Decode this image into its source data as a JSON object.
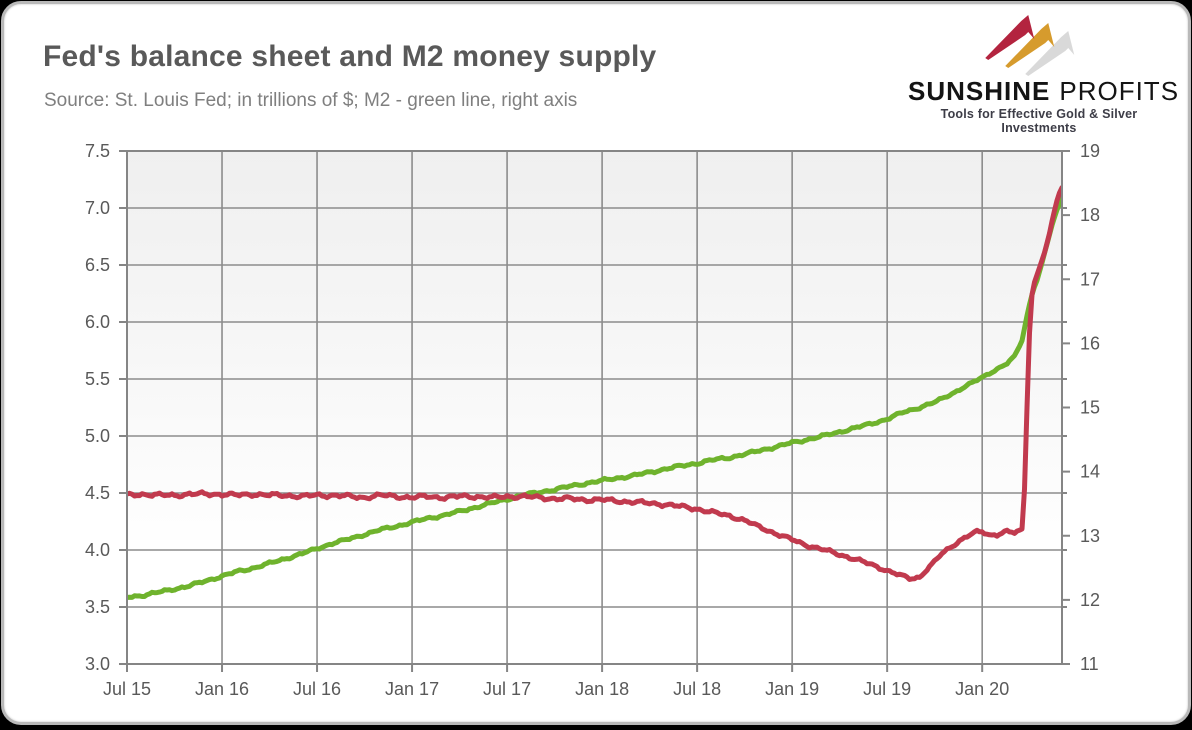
{
  "header": {
    "title": "Fed's balance sheet and M2 money supply",
    "subtitle": "Source: St. Louis Fed; in trillions of $; M2 - green line, right axis"
  },
  "logo": {
    "brand_bold": "SUNSHINE",
    "brand_light": "PROFITS",
    "tagline": "Tools for Effective Gold & Silver Investments",
    "bolt_colors": {
      "red": "#b3243f",
      "gold": "#d69b2d",
      "silver": "#d9d9d9"
    }
  },
  "chart_data": {
    "type": "line",
    "title": "Fed's balance sheet and M2 money supply",
    "x_domain": [
      2015.5,
      2020.42
    ],
    "x_ticks": [
      {
        "v": 2015.5,
        "label": "Jul 15"
      },
      {
        "v": 2016.0,
        "label": "Jan 16"
      },
      {
        "v": 2016.5,
        "label": "Jul 16"
      },
      {
        "v": 2017.0,
        "label": "Jan 17"
      },
      {
        "v": 2017.5,
        "label": "Jul 17"
      },
      {
        "v": 2018.0,
        "label": "Jan 18"
      },
      {
        "v": 2018.5,
        "label": "Jul 18"
      },
      {
        "v": 2019.0,
        "label": "Jan 19"
      },
      {
        "v": 2019.5,
        "label": "Jul 19"
      },
      {
        "v": 2020.0,
        "label": "Jan 20"
      }
    ],
    "y_left": {
      "min": 3.0,
      "max": 7.5,
      "step": 0.5,
      "labels": [
        "3.0",
        "3.5",
        "4.0",
        "4.5",
        "5.0",
        "5.5",
        "6.0",
        "6.5",
        "7.0",
        "7.5"
      ]
    },
    "y_right": {
      "min": 11,
      "max": 19,
      "step": 1,
      "labels": [
        "11",
        "12",
        "13",
        "14",
        "15",
        "16",
        "17",
        "18",
        "19"
      ]
    },
    "grid": {
      "on": true,
      "color": "#8c8c8c"
    },
    "plot_background": {
      "top": "#efefef",
      "bottom": "#ffffff"
    },
    "axis_text_color": "#595959",
    "series": [
      {
        "name": "M2 money supply",
        "axis": "right",
        "color": "#6fb32d",
        "points": [
          [
            2015.5,
            12.04
          ],
          [
            2015.58,
            12.07
          ],
          [
            2015.67,
            12.12
          ],
          [
            2015.75,
            12.17
          ],
          [
            2015.83,
            12.22
          ],
          [
            2015.92,
            12.3
          ],
          [
            2016.0,
            12.37
          ],
          [
            2016.08,
            12.44
          ],
          [
            2016.17,
            12.5
          ],
          [
            2016.25,
            12.57
          ],
          [
            2016.33,
            12.64
          ],
          [
            2016.42,
            12.72
          ],
          [
            2016.5,
            12.8
          ],
          [
            2016.58,
            12.88
          ],
          [
            2016.67,
            12.95
          ],
          [
            2016.75,
            13.02
          ],
          [
            2016.83,
            13.09
          ],
          [
            2016.92,
            13.15
          ],
          [
            2017.0,
            13.21
          ],
          [
            2017.08,
            13.27
          ],
          [
            2017.17,
            13.32
          ],
          [
            2017.25,
            13.38
          ],
          [
            2017.33,
            13.44
          ],
          [
            2017.42,
            13.51
          ],
          [
            2017.5,
            13.57
          ],
          [
            2017.58,
            13.63
          ],
          [
            2017.67,
            13.68
          ],
          [
            2017.75,
            13.72
          ],
          [
            2017.83,
            13.77
          ],
          [
            2017.92,
            13.82
          ],
          [
            2018.0,
            13.86
          ],
          [
            2018.08,
            13.9
          ],
          [
            2018.17,
            13.94
          ],
          [
            2018.25,
            13.99
          ],
          [
            2018.33,
            14.04
          ],
          [
            2018.42,
            14.09
          ],
          [
            2018.5,
            14.13
          ],
          [
            2018.58,
            14.18
          ],
          [
            2018.67,
            14.22
          ],
          [
            2018.75,
            14.27
          ],
          [
            2018.83,
            14.33
          ],
          [
            2018.92,
            14.39
          ],
          [
            2019.0,
            14.45
          ],
          [
            2019.08,
            14.5
          ],
          [
            2019.17,
            14.56
          ],
          [
            2019.25,
            14.62
          ],
          [
            2019.33,
            14.68
          ],
          [
            2019.42,
            14.75
          ],
          [
            2019.5,
            14.82
          ],
          [
            2019.58,
            14.92
          ],
          [
            2019.67,
            15.0
          ],
          [
            2019.75,
            15.08
          ],
          [
            2019.83,
            15.2
          ],
          [
            2019.92,
            15.34
          ],
          [
            2020.0,
            15.47
          ],
          [
            2020.04,
            15.54
          ],
          [
            2020.08,
            15.6
          ],
          [
            2020.13,
            15.68
          ],
          [
            2020.17,
            15.8
          ],
          [
            2020.19,
            15.92
          ],
          [
            2020.21,
            16.05
          ],
          [
            2020.23,
            16.35
          ],
          [
            2020.25,
            16.62
          ],
          [
            2020.27,
            16.85
          ],
          [
            2020.29,
            17.0
          ],
          [
            2020.31,
            17.2
          ],
          [
            2020.33,
            17.42
          ],
          [
            2020.35,
            17.65
          ],
          [
            2020.37,
            17.87
          ],
          [
            2020.39,
            18.05
          ],
          [
            2020.41,
            18.2
          ],
          [
            2020.42,
            18.28
          ]
        ]
      },
      {
        "name": "Fed's balance sheet",
        "axis": "left",
        "color": "#c13a4e",
        "points": [
          [
            2015.5,
            4.48
          ],
          [
            2015.58,
            4.49
          ],
          [
            2015.67,
            4.48
          ],
          [
            2015.75,
            4.48
          ],
          [
            2015.83,
            4.49
          ],
          [
            2015.92,
            4.49
          ],
          [
            2016.0,
            4.49
          ],
          [
            2016.08,
            4.48
          ],
          [
            2016.17,
            4.49
          ],
          [
            2016.25,
            4.48
          ],
          [
            2016.33,
            4.48
          ],
          [
            2016.42,
            4.47
          ],
          [
            2016.5,
            4.48
          ],
          [
            2016.58,
            4.48
          ],
          [
            2016.67,
            4.47
          ],
          [
            2016.75,
            4.46
          ],
          [
            2016.83,
            4.48
          ],
          [
            2016.92,
            4.47
          ],
          [
            2017.0,
            4.46
          ],
          [
            2017.08,
            4.47
          ],
          [
            2017.17,
            4.46
          ],
          [
            2017.25,
            4.47
          ],
          [
            2017.33,
            4.47
          ],
          [
            2017.42,
            4.46
          ],
          [
            2017.5,
            4.47
          ],
          [
            2017.58,
            4.47
          ],
          [
            2017.67,
            4.46
          ],
          [
            2017.75,
            4.45
          ],
          [
            2017.83,
            4.45
          ],
          [
            2017.92,
            4.44
          ],
          [
            2018.0,
            4.44
          ],
          [
            2018.08,
            4.43
          ],
          [
            2018.17,
            4.42
          ],
          [
            2018.25,
            4.41
          ],
          [
            2018.33,
            4.4
          ],
          [
            2018.42,
            4.38
          ],
          [
            2018.5,
            4.36
          ],
          [
            2018.58,
            4.33
          ],
          [
            2018.67,
            4.3
          ],
          [
            2018.75,
            4.26
          ],
          [
            2018.83,
            4.2
          ],
          [
            2018.92,
            4.14
          ],
          [
            2019.0,
            4.09
          ],
          [
            2019.08,
            4.04
          ],
          [
            2019.17,
            4.0
          ],
          [
            2019.25,
            3.96
          ],
          [
            2019.33,
            3.92
          ],
          [
            2019.42,
            3.87
          ],
          [
            2019.5,
            3.82
          ],
          [
            2019.58,
            3.77
          ],
          [
            2019.62,
            3.75
          ],
          [
            2019.67,
            3.76
          ],
          [
            2019.71,
            3.83
          ],
          [
            2019.75,
            3.9
          ],
          [
            2019.79,
            3.97
          ],
          [
            2019.83,
            4.02
          ],
          [
            2019.88,
            4.08
          ],
          [
            2019.92,
            4.12
          ],
          [
            2019.96,
            4.15
          ],
          [
            2020.0,
            4.16
          ],
          [
            2020.04,
            4.13
          ],
          [
            2020.08,
            4.14
          ],
          [
            2020.13,
            4.16
          ],
          [
            2020.17,
            4.15
          ],
          [
            2020.19,
            4.16
          ],
          [
            2020.21,
            4.18
          ],
          [
            2020.22,
            4.4
          ],
          [
            2020.23,
            4.9
          ],
          [
            2020.24,
            5.5
          ],
          [
            2020.25,
            5.95
          ],
          [
            2020.26,
            6.22
          ],
          [
            2020.27,
            6.32
          ],
          [
            2020.29,
            6.42
          ],
          [
            2020.31,
            6.52
          ],
          [
            2020.33,
            6.62
          ],
          [
            2020.35,
            6.74
          ],
          [
            2020.37,
            6.9
          ],
          [
            2020.39,
            7.05
          ],
          [
            2020.41,
            7.15
          ],
          [
            2020.42,
            7.18
          ]
        ]
      }
    ]
  }
}
